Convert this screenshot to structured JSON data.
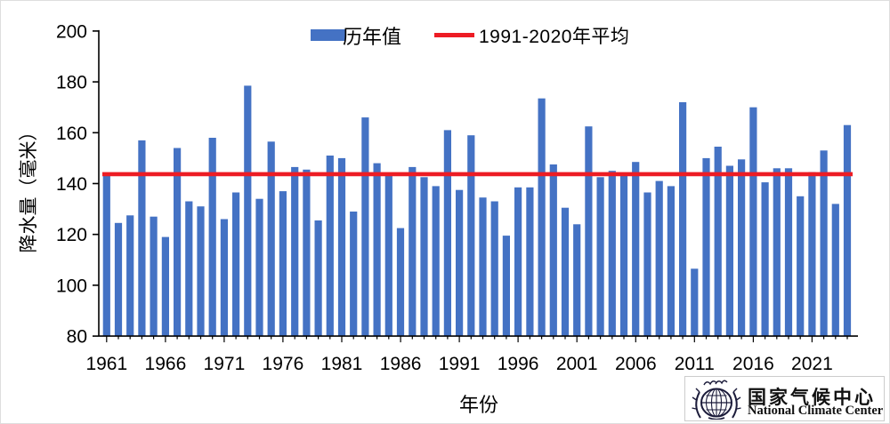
{
  "chart_data": {
    "type": "bar",
    "title": "",
    "xlabel": "年份",
    "ylabel": "降水量（毫米）",
    "ylim": [
      80,
      200
    ],
    "ytick_step": 20,
    "y_tick_labels": [
      "80",
      "100",
      "120",
      "140",
      "160",
      "180",
      "200"
    ],
    "x_tick_labels": [
      "1961",
      "1966",
      "1971",
      "1976",
      "1981",
      "1986",
      "1991",
      "1996",
      "2001",
      "2006",
      "2011",
      "2016",
      "2021"
    ],
    "grid": "off",
    "legend_position": "top-center",
    "series_name": "历年值",
    "year_start": 1961,
    "year_end": 2024,
    "values": [
      144,
      124.5,
      127.5,
      157,
      127,
      119,
      154,
      133,
      131,
      158,
      126,
      136.5,
      178.5,
      134,
      156.5,
      137,
      146.5,
      145.5,
      125.5,
      151,
      150,
      129,
      166,
      148,
      144,
      122.5,
      146.5,
      142.5,
      139,
      161,
      137.5,
      159,
      134.5,
      133,
      119.5,
      138.5,
      138.5,
      173.5,
      147.5,
      130.5,
      124,
      162.5,
      142.5,
      145,
      143.5,
      148.5,
      136.5,
      141,
      139,
      172,
      106.5,
      150,
      154.5,
      147,
      149.5,
      170,
      140.5,
      146,
      146,
      135,
      144.5,
      153,
      132,
      163
    ],
    "reference_line": {
      "label": "1991-2020年平均",
      "value": 143.7
    },
    "colors": {
      "bar": "#4472c4",
      "reference": "#ed1c24",
      "axis": "#000000",
      "logo": "#1b1b3a"
    }
  },
  "footer": {
    "org_cn": "国家气候中心",
    "org_en": "National Climate Center"
  }
}
